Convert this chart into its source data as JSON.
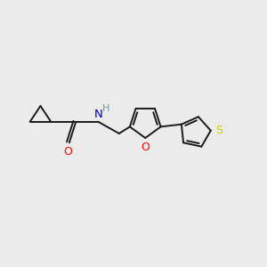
{
  "bg_color": "#ebebeb",
  "bond_color": "#1a1a1a",
  "bond_width": 1.4,
  "atom_colors": {
    "O": "#ff0000",
    "N": "#0000cc",
    "S": "#cccc00",
    "H": "#7a9a9a"
  },
  "figsize": [
    3.0,
    3.0
  ],
  "dpi": 100
}
